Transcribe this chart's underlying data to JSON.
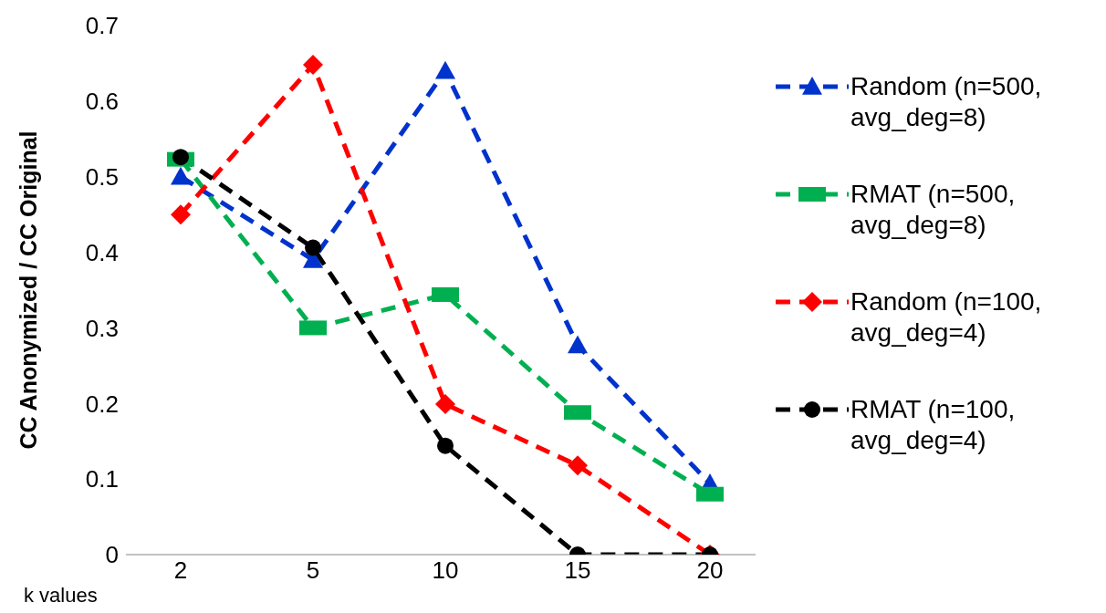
{
  "chart_data": {
    "type": "line",
    "xlabel": "k values",
    "ylabel": "CC Anonymized / CC Original",
    "categories": [
      "2",
      "5",
      "10",
      "15",
      "20"
    ],
    "ylim": [
      0,
      0.7
    ],
    "yticks": [
      0,
      0.1,
      0.2,
      0.3,
      0.4,
      0.5,
      0.6,
      0.7
    ],
    "grid": false,
    "legend": "right",
    "line_style": "dashed",
    "series": [
      {
        "name": "Random (n=500, avg_deg=8)",
        "color": "#0033cc",
        "marker": "triangle",
        "values": [
          0.5,
          0.39,
          0.64,
          0.277,
          0.094
        ]
      },
      {
        "name": "RMAT (n=500, avg_deg=8)",
        "color": "#00b050",
        "marker": "square",
        "values": [
          0.523,
          0.3,
          0.344,
          0.188,
          0.08
        ]
      },
      {
        "name": "Random (n=100, avg_deg=4)",
        "color": "#ff0000",
        "marker": "diamond",
        "values": [
          0.45,
          0.648,
          0.199,
          0.118,
          0
        ]
      },
      {
        "name": "RMAT (n=100, avg_deg=4)",
        "color": "#000000",
        "marker": "circle",
        "values": [
          0.526,
          0.406,
          0.144,
          0,
          0
        ]
      }
    ]
  }
}
